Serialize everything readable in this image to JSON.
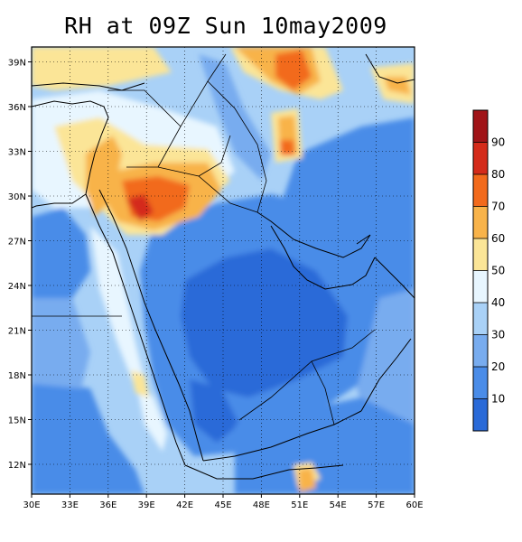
{
  "title": "RH at 09Z Sun 10may2009",
  "map": {
    "lon_range": [
      30,
      60
    ],
    "lat_range": [
      10,
      40
    ],
    "x_ticks": [
      "30E",
      "33E",
      "36E",
      "39E",
      "42E",
      "45E",
      "48E",
      "51E",
      "54E",
      "57E",
      "60E"
    ],
    "y_ticks": [
      "39N",
      "36N",
      "33N",
      "30N",
      "27N",
      "24N",
      "21N",
      "18N",
      "15N",
      "12N"
    ],
    "grid": "dotted"
  },
  "colorbar": {
    "levels": [
      "10",
      "20",
      "30",
      "40",
      "50",
      "60",
      "70",
      "80",
      "90"
    ],
    "colors": [
      "#2a6ad8",
      "#4a8ce8",
      "#78acef",
      "#a9d1f7",
      "#e8f6ff",
      "#fbe597",
      "#f8b34a",
      "#f26a1c",
      "#d42b1a",
      "#a01418"
    ]
  }
}
